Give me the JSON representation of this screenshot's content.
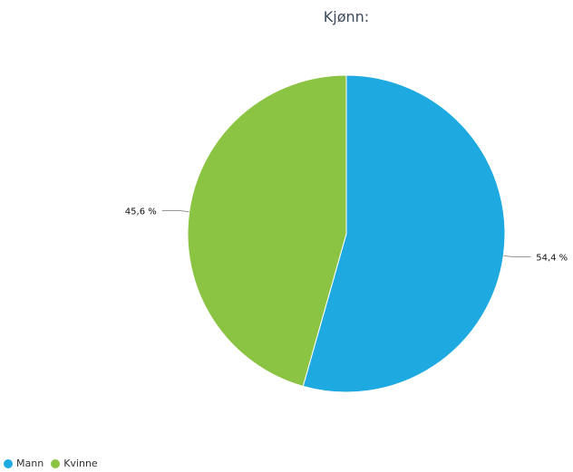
{
  "chart_data": {
    "type": "pie",
    "title": "Kjønn:",
    "slices": [
      {
        "name": "Mann",
        "value": 54.4,
        "label": "54,4 %",
        "color": "#1ea9e1"
      },
      {
        "name": "Kvinne",
        "value": 45.6,
        "label": "45,6 %",
        "color": "#8bc443"
      }
    ],
    "legend_placement": "bottom-left"
  }
}
